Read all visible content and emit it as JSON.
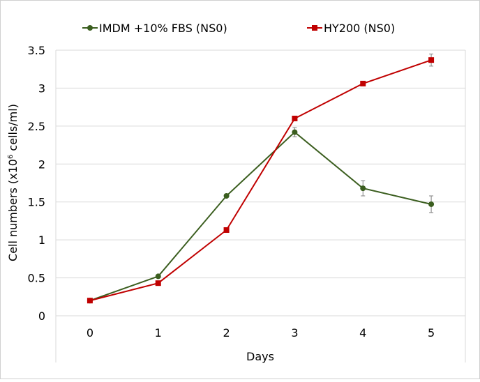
{
  "chart_data": {
    "type": "line",
    "xlabel": "Days",
    "ylabel_prefix": "Cell numbers (x10",
    "ylabel_sup": "6",
    "ylabel_suffix": " cells/ml)",
    "x": [
      0,
      1,
      2,
      3,
      4,
      5
    ],
    "x_tick_labels": [
      "0",
      "1",
      "2",
      "3",
      "4",
      "5"
    ],
    "ylim": [
      0,
      3.5
    ],
    "y_ticks": [
      0,
      0.5,
      1,
      1.5,
      2,
      2.5,
      3,
      3.5
    ],
    "y_tick_labels": [
      "0",
      "0.5",
      "1",
      "1.5",
      "2",
      "2.5",
      "3",
      "3.5"
    ],
    "grid": true,
    "legend_position": "top",
    "series": [
      {
        "name": "IMDM +10% FBS (NS0)",
        "color": "#3b5e1f",
        "marker": "circle",
        "values": [
          0.2,
          0.52,
          1.58,
          2.42,
          1.68,
          1.47
        ],
        "errors": [
          0,
          0,
          0,
          0.06,
          0.1,
          0.11
        ]
      },
      {
        "name": "HY200 (NS0)",
        "color": "#c00000",
        "marker": "square",
        "values": [
          0.2,
          0.43,
          1.13,
          2.6,
          3.06,
          3.37
        ],
        "errors": [
          0,
          0,
          0,
          0,
          0,
          0.08
        ]
      }
    ]
  }
}
